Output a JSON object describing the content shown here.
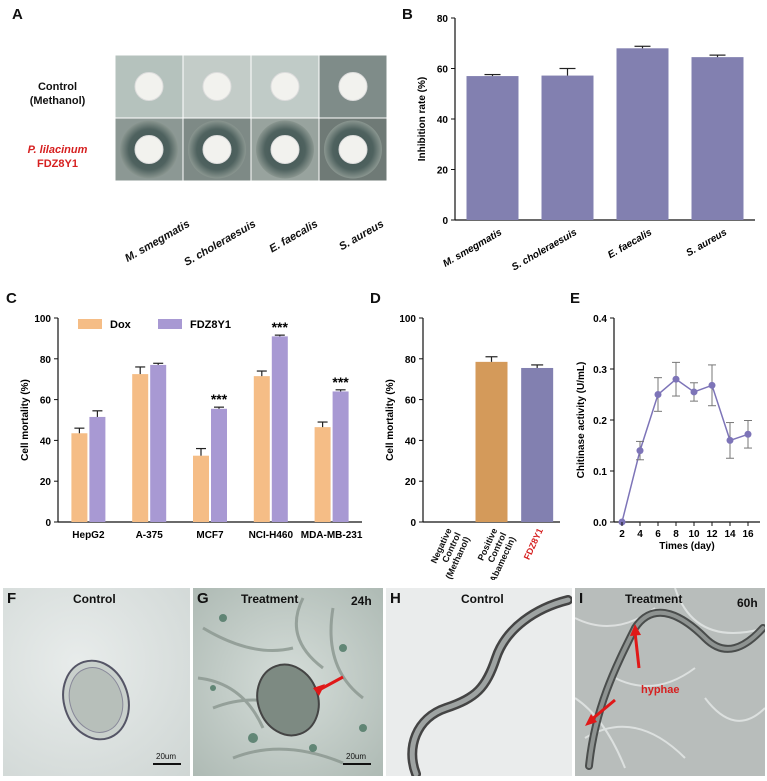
{
  "panels": {
    "A": {
      "label": "A",
      "rows": [
        "Control\n(Methanol)",
        "P. lilacinum\nFDZ8Y1"
      ],
      "row_control": [
        "Control",
        "(Methanol)"
      ],
      "row_treat": [
        "P. lilacinum",
        "FDZ8Y1"
      ],
      "columns": [
        "M. smegmatis",
        "S. choleraesuis",
        "E. faecalis",
        "S. aureus"
      ],
      "colors": {
        "treat_label": "#d62020"
      }
    },
    "B": {
      "label": "B"
    },
    "C": {
      "label": "C"
    },
    "D": {
      "label": "D"
    },
    "E": {
      "label": "E"
    },
    "F": {
      "label": "F",
      "title": "Control",
      "scale": "20um"
    },
    "G": {
      "label": "G",
      "title": "Treatment",
      "time": "24h",
      "scale": "20um"
    },
    "H": {
      "label": "H",
      "title": "Control"
    },
    "I": {
      "label": "I",
      "title": "Treatment",
      "time": "60h",
      "annotation": "hyphae"
    }
  },
  "chart_data": [
    {
      "panel": "B",
      "type": "bar",
      "categories": [
        "M. smegmatis",
        "S. choleraesuis",
        "E. faecalis",
        "S. aureus"
      ],
      "values": [
        57,
        57.2,
        68,
        64.5
      ],
      "errors": [
        0.6,
        2.8,
        0.8,
        0.8
      ],
      "ylabel": "Inhibition rate (%)",
      "ylim": [
        0,
        80
      ],
      "yticks": [
        0,
        20,
        40,
        60,
        80
      ],
      "color": "#8280b0"
    },
    {
      "panel": "C",
      "type": "bar",
      "categories": [
        "HepG2",
        "A-375",
        "MCF7",
        "NCI-H460",
        "MDA-MB-231"
      ],
      "series": [
        {
          "name": "Dox",
          "values": [
            43.5,
            72.5,
            32.5,
            71.5,
            46.5
          ],
          "errors": [
            2.5,
            3.5,
            3.5,
            2.5,
            2.5
          ],
          "color": "#f5bd86"
        },
        {
          "name": "FDZ8Y1",
          "values": [
            51.5,
            77,
            55.5,
            91,
            64
          ],
          "errors": [
            3,
            0.8,
            0.8,
            0.6,
            0.8
          ],
          "color": "#a899d3"
        }
      ],
      "annotations": [
        "",
        "",
        "***",
        "***",
        "***"
      ],
      "ylabel": "Cell mortality (%)",
      "ylim": [
        0,
        100
      ],
      "yticks": [
        0,
        20,
        40,
        60,
        80,
        100
      ]
    },
    {
      "panel": "D",
      "type": "bar",
      "categories": [
        "Negative\nControl\n(Methanol)",
        "Positive\nControl\n(Abamectin)",
        "FDZ8Y1"
      ],
      "category_lines": [
        [
          "Negative",
          "Control",
          "(Methanol)"
        ],
        [
          "Positive",
          "Control",
          "(Abamectin)"
        ],
        [
          "FDZ8Y1"
        ]
      ],
      "values": [
        0,
        78.5,
        75.5
      ],
      "errors": [
        0,
        2.5,
        1.5
      ],
      "colors": [
        "#d49a5a",
        "#d49a5a",
        "#8280b0"
      ],
      "label_colors": [
        "#111111",
        "#111111",
        "#d62020"
      ],
      "ylabel": "Cell mortality (%)",
      "ylim": [
        0,
        100
      ],
      "yticks": [
        0,
        20,
        40,
        60,
        80,
        100
      ]
    },
    {
      "panel": "E",
      "type": "line",
      "x": [
        2,
        4,
        6,
        8,
        10,
        12,
        14,
        16
      ],
      "values": [
        0.0,
        0.14,
        0.25,
        0.28,
        0.255,
        0.268,
        0.16,
        0.172
      ],
      "errors": [
        0,
        0.018,
        0.033,
        0.033,
        0.018,
        0.04,
        0.035,
        0.027
      ],
      "xlabel": "Times (day)",
      "ylabel": "Chitinase activity (U/mL)",
      "ylim": [
        0,
        0.4
      ],
      "yticks": [
        "0.0",
        "0.1",
        "0.2",
        "0.3",
        "0.4"
      ],
      "color": "#7d74b8"
    }
  ]
}
